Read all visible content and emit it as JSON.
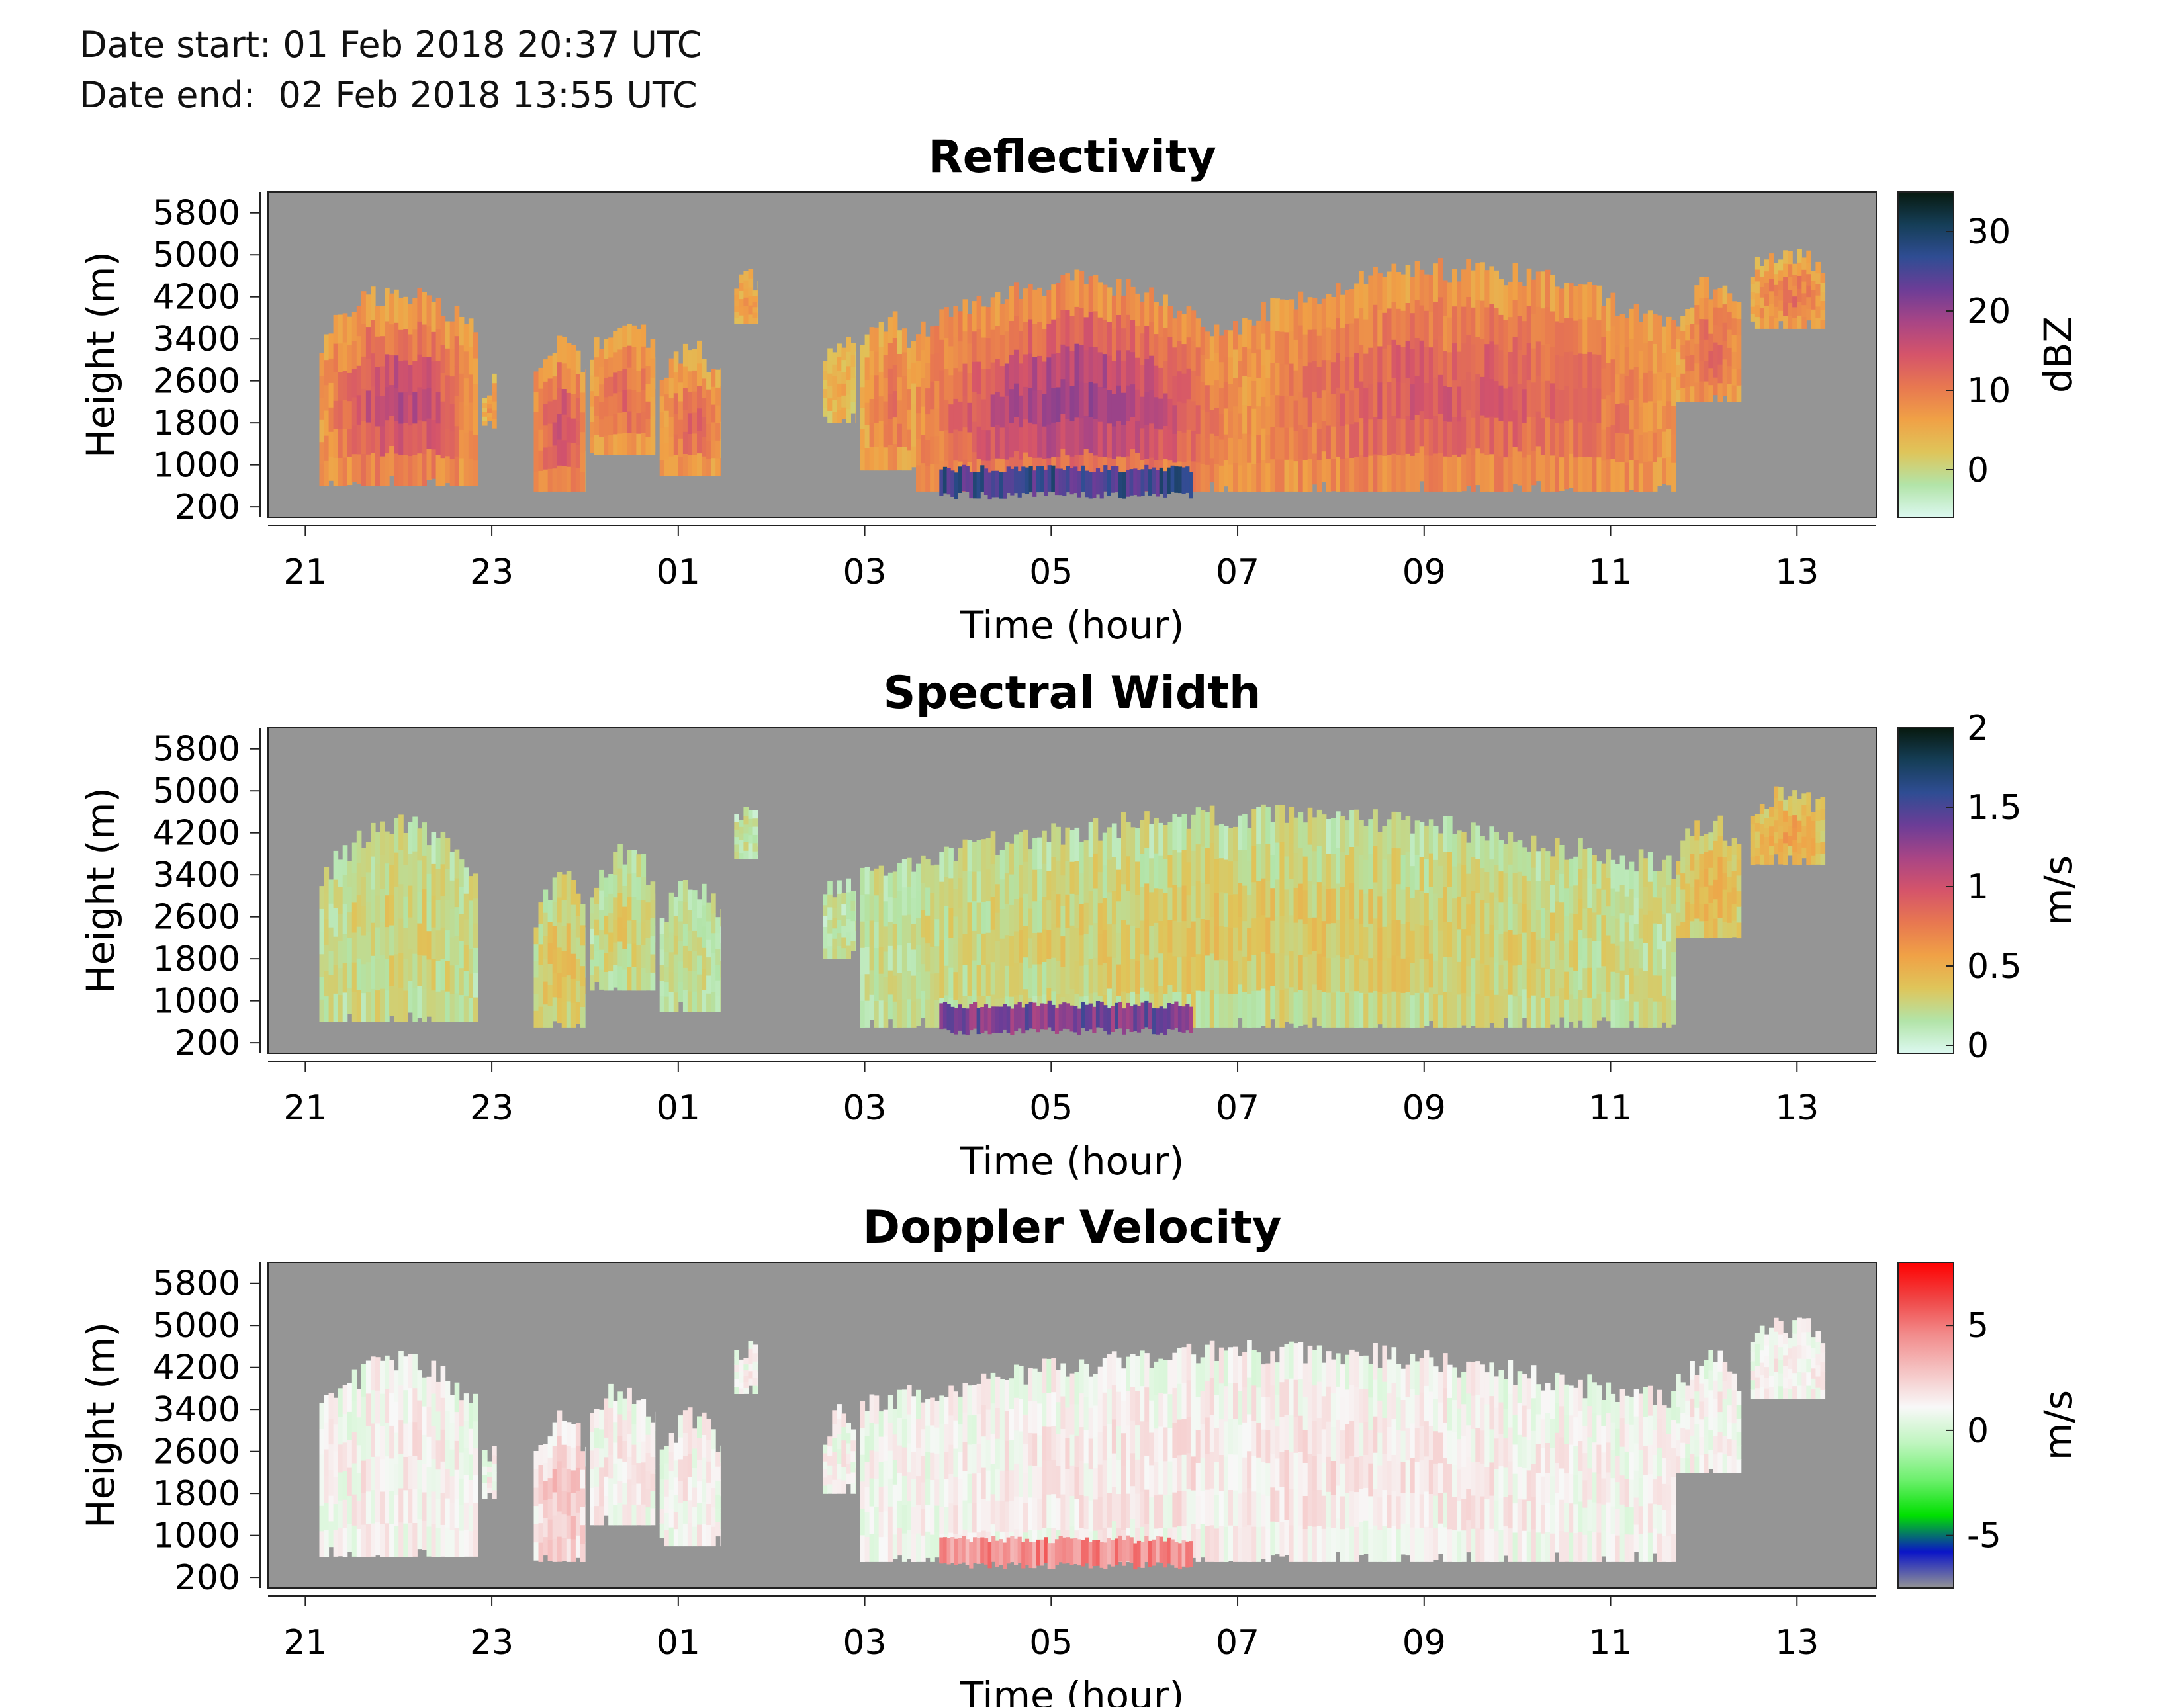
{
  "header": {
    "date_start": "Date start: 01 Feb 2018 20:37 UTC",
    "date_end": "Date end:  02 Feb 2018 13:55 UTC"
  },
  "colors": {
    "missing": "#959595",
    "background": "#ffffff"
  },
  "chart_data": [
    {
      "type": "heatmap",
      "title": "Reflectivity",
      "xlabel": "Time (hour)",
      "ylabel": "Height (m)",
      "x_tick_labels": [
        "21",
        "23",
        "01",
        "03",
        "05",
        "07",
        "09",
        "11",
        "13"
      ],
      "y_tick_labels": [
        "200",
        "1000",
        "1800",
        "2600",
        "3400",
        "4200",
        "5000",
        "5800"
      ],
      "y_ticks": [
        200,
        1000,
        1800,
        2600,
        3400,
        4200,
        5000,
        5800
      ],
      "ylim": [
        0,
        6200
      ],
      "xlim_hours_from_21": [
        -0.4,
        16.85
      ],
      "colorbar": {
        "label": "dBZ",
        "ticks": [
          "0",
          "10",
          "20",
          "30"
        ],
        "tick_values": [
          0,
          10,
          20,
          30
        ],
        "range": [
          -6,
          35
        ],
        "colormap": [
          "#dcf8f0",
          "#b2e4a8",
          "#dfc55a",
          "#f0a146",
          "#e87850",
          "#d5546a",
          "#a94585",
          "#6c3d97",
          "#2f4d93",
          "#153e57",
          "#07190e"
        ]
      },
      "echo_regions": [
        {
          "start": 0.15,
          "end": 1.85,
          "base": 600,
          "top": 4300,
          "core_value": 17,
          "edge_value": 7
        },
        {
          "start": 1.9,
          "end": 2.05,
          "base": 1700,
          "top": 2600,
          "core_value": 7,
          "edge_value": 4
        },
        {
          "start": 2.45,
          "end": 3.0,
          "base": 500,
          "top": 3300,
          "core_value": 15,
          "edge_value": 7
        },
        {
          "start": 3.05,
          "end": 3.75,
          "base": 1200,
          "top": 3800,
          "core_value": 12,
          "edge_value": 6
        },
        {
          "start": 3.8,
          "end": 4.45,
          "base": 800,
          "top": 3200,
          "core_value": 12,
          "edge_value": 6
        },
        {
          "start": 4.6,
          "end": 4.85,
          "base": 3700,
          "top": 4600,
          "core_value": 7,
          "edge_value": 4
        },
        {
          "start": 5.55,
          "end": 5.9,
          "base": 1800,
          "top": 3300,
          "core_value": 6,
          "edge_value": 3
        },
        {
          "start": 5.95,
          "end": 6.55,
          "base": 900,
          "top": 3800,
          "core_value": 11,
          "edge_value": 5
        },
        {
          "start": 6.55,
          "end": 9.9,
          "base": 500,
          "top": 4500,
          "core_value": 19,
          "edge_value": 8
        },
        {
          "start": 9.9,
          "end": 14.7,
          "base": 500,
          "top": 4700,
          "core_value": 14,
          "edge_value": 7
        },
        {
          "start": 14.7,
          "end": 15.4,
          "base": 2200,
          "top": 4400,
          "core_value": 12,
          "edge_value": 6
        },
        {
          "start": 15.5,
          "end": 16.3,
          "base": 3600,
          "top": 5000,
          "core_value": 11,
          "edge_value": 5
        }
      ],
      "surface_layer": {
        "start": 6.8,
        "end": 9.5,
        "top": 1000,
        "value": 26
      }
    },
    {
      "type": "heatmap",
      "title": "Spectral Width",
      "xlabel": "Time (hour)",
      "ylabel": "Height (m)",
      "x_tick_labels": [
        "21",
        "23",
        "01",
        "03",
        "05",
        "07",
        "09",
        "11",
        "13"
      ],
      "y_tick_labels": [
        "200",
        "1000",
        "1800",
        "2600",
        "3400",
        "4200",
        "5000",
        "5800"
      ],
      "y_ticks": [
        200,
        1000,
        1800,
        2600,
        3400,
        4200,
        5000,
        5800
      ],
      "ylim": [
        0,
        6200
      ],
      "xlim_hours_from_21": [
        -0.4,
        16.85
      ],
      "colorbar": {
        "label": "m/s",
        "ticks": [
          "0",
          "0.5",
          "1",
          "1.5",
          "2"
        ],
        "tick_values": [
          0,
          0.5,
          1,
          1.5,
          2
        ],
        "range": [
          -0.05,
          2
        ],
        "colormap": [
          "#dcf8f0",
          "#b2e4a8",
          "#dfc55a",
          "#f0a146",
          "#e87850",
          "#d5546a",
          "#a94585",
          "#6c3d97",
          "#2f4d93",
          "#153e57",
          "#07190e"
        ]
      },
      "echo_regions": [
        {
          "start": 0.15,
          "end": 1.85,
          "base": 600,
          "top": 4300,
          "core_value": 0.3,
          "edge_value": 0.2
        },
        {
          "start": 2.45,
          "end": 3.0,
          "base": 500,
          "top": 3300,
          "core_value": 0.4,
          "edge_value": 0.25
        },
        {
          "start": 3.05,
          "end": 3.75,
          "base": 1200,
          "top": 3800,
          "core_value": 0.3,
          "edge_value": 0.2
        },
        {
          "start": 3.8,
          "end": 4.45,
          "base": 800,
          "top": 3200,
          "core_value": 0.25,
          "edge_value": 0.15
        },
        {
          "start": 4.6,
          "end": 4.85,
          "base": 3700,
          "top": 4600,
          "core_value": 0.2,
          "edge_value": 0.15
        },
        {
          "start": 5.55,
          "end": 5.9,
          "base": 1800,
          "top": 3300,
          "core_value": 0.2,
          "edge_value": 0.15
        },
        {
          "start": 5.95,
          "end": 14.7,
          "base": 500,
          "top": 4500,
          "core_value": 0.35,
          "edge_value": 0.2
        },
        {
          "start": 14.7,
          "end": 15.4,
          "base": 2200,
          "top": 4400,
          "core_value": 0.45,
          "edge_value": 0.3
        },
        {
          "start": 15.5,
          "end": 16.3,
          "base": 3600,
          "top": 5000,
          "core_value": 0.55,
          "edge_value": 0.35
        }
      ],
      "surface_layer": {
        "start": 6.8,
        "end": 9.5,
        "top": 1000,
        "value": 1.35
      }
    },
    {
      "type": "heatmap",
      "title": "Doppler Velocity",
      "xlabel": "Time (hour)",
      "ylabel": "Height (m)",
      "x_tick_labels": [
        "21",
        "23",
        "01",
        "03",
        "05",
        "07",
        "09",
        "11",
        "13"
      ],
      "y_tick_labels": [
        "200",
        "1000",
        "1800",
        "2600",
        "3400",
        "4200",
        "5000",
        "5800"
      ],
      "y_ticks": [
        200,
        1000,
        1800,
        2600,
        3400,
        4200,
        5000,
        5800
      ],
      "ylim": [
        0,
        6200
      ],
      "xlim_hours_from_21": [
        -0.4,
        16.85
      ],
      "colorbar": {
        "label": "m/s",
        "ticks": [
          "-5",
          "0",
          "5"
        ],
        "tick_values": [
          -5,
          0,
          5
        ],
        "range": [
          -7.5,
          8
        ],
        "colormap": [
          "#959595",
          "#0a14c8",
          "#00e000",
          "#6ef06e",
          "#bff5bf",
          "#f8f8f8",
          "#f5c3c3",
          "#f28c8c",
          "#f04545",
          "#ff0000"
        ]
      },
      "echo_regions": [
        {
          "start": 0.15,
          "end": 1.85,
          "base": 600,
          "top": 4300,
          "core_value": 1.5,
          "edge_value": 1.0
        },
        {
          "start": 1.9,
          "end": 2.05,
          "base": 1700,
          "top": 2600,
          "core_value": 1.2,
          "edge_value": 1.0
        },
        {
          "start": 2.45,
          "end": 3.0,
          "base": 500,
          "top": 3300,
          "core_value": 3.0,
          "edge_value": 1.8
        },
        {
          "start": 3.05,
          "end": 3.75,
          "base": 1200,
          "top": 3800,
          "core_value": 1.6,
          "edge_value": 1.1
        },
        {
          "start": 3.8,
          "end": 4.45,
          "base": 800,
          "top": 3200,
          "core_value": 1.5,
          "edge_value": 1.0
        },
        {
          "start": 4.6,
          "end": 4.85,
          "base": 3700,
          "top": 4600,
          "core_value": 1.2,
          "edge_value": 1.0
        },
        {
          "start": 5.55,
          "end": 5.9,
          "base": 1800,
          "top": 3300,
          "core_value": 1.2,
          "edge_value": 1.0
        },
        {
          "start": 5.95,
          "end": 14.7,
          "base": 500,
          "top": 4500,
          "core_value": 1.7,
          "edge_value": 1.0
        },
        {
          "start": 14.7,
          "end": 15.4,
          "base": 2200,
          "top": 4400,
          "core_value": 1.4,
          "edge_value": 1.0
        },
        {
          "start": 15.5,
          "end": 16.3,
          "base": 3600,
          "top": 5000,
          "core_value": 1.3,
          "edge_value": 1.0
        }
      ],
      "surface_layer": {
        "start": 6.8,
        "end": 9.5,
        "top": 1000,
        "value": 4.5
      }
    }
  ]
}
